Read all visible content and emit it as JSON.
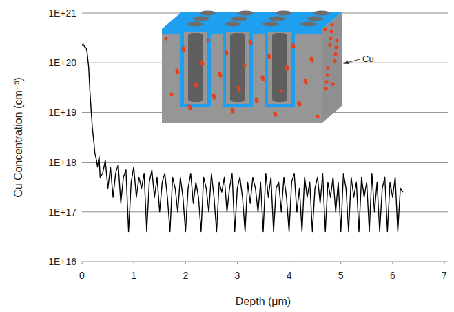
{
  "chart_data": {
    "type": "line",
    "x_label": "Depth (μm)",
    "y_label": "Cu Concentration (cm⁻³)",
    "annotation": "Cu",
    "log": "y",
    "grid": true,
    "color": "#000000",
    "xlim": [
      0,
      7
    ],
    "xticks": [
      0,
      1,
      2,
      3,
      4,
      5,
      6,
      7
    ],
    "ylim": [
      1e+16,
      1e+21
    ],
    "yticks": [
      {
        "value": 1e+16,
        "label": "1E+16"
      },
      {
        "value": 1e+17,
        "label": "1E+17"
      },
      {
        "value": 1e+18,
        "label": "1E+18"
      },
      {
        "value": 1e+19,
        "label": "1E+19"
      },
      {
        "value": 1e+20,
        "label": "1E+20"
      },
      {
        "value": 1e+21,
        "label": "1E+21"
      }
    ],
    "x": [
      0,
      0.02,
      0.05,
      0.08,
      0.1,
      0.13,
      0.15,
      0.18,
      0.2,
      0.23,
      0.25,
      0.28,
      0.3,
      0.33,
      0.35,
      0.4,
      0.45,
      0.5,
      0.55,
      0.6,
      0.65,
      0.7,
      0.75,
      0.8,
      0.85,
      0.9,
      0.95,
      1.0,
      1.05,
      1.1,
      1.15,
      1.2,
      1.25,
      1.3,
      1.35,
      1.4,
      1.45,
      1.5,
      1.55,
      1.6,
      1.65,
      1.7,
      1.75,
      1.8,
      1.85,
      1.9,
      1.95,
      2.0,
      2.05,
      2.1,
      2.15,
      2.2,
      2.25,
      2.3,
      2.35,
      2.4,
      2.45,
      2.5,
      2.55,
      2.6,
      2.65,
      2.7,
      2.75,
      2.8,
      2.85,
      2.9,
      2.95,
      3.0,
      3.05,
      3.1,
      3.15,
      3.2,
      3.25,
      3.3,
      3.35,
      3.4,
      3.45,
      3.5,
      3.55,
      3.6,
      3.65,
      3.7,
      3.75,
      3.8,
      3.85,
      3.9,
      3.95,
      4.0,
      4.05,
      4.1,
      4.15,
      4.2,
      4.25,
      4.3,
      4.35,
      4.4,
      4.45,
      4.5,
      4.55,
      4.6,
      4.65,
      4.7,
      4.75,
      4.8,
      4.85,
      4.9,
      4.95,
      5.0,
      5.05,
      5.1,
      5.15,
      5.2,
      5.25,
      5.3,
      5.35,
      5.4,
      5.45,
      5.5,
      5.55,
      5.6,
      5.65,
      5.7,
      5.75,
      5.8,
      5.85,
      5.9,
      5.95,
      6.0,
      6.05,
      6.1,
      6.15,
      6.2
    ],
    "values": [
      2.2e+20,
      2.4e+20,
      2.1e+20,
      2e+20,
      1.6e+20,
      8e+19,
      3e+19,
      1e+19,
      5e+18,
      2.5e+18,
      1.5e+18,
      1.1e+18,
      8e+17,
      1.3e+18,
      5e+17,
      6e+17,
      1.1e+18,
      3e+17,
      8e+17,
      2e+17,
      6e+17,
      9e+17,
      1.5e+17,
      5e+17,
      7e+17,
      4e+16,
      4e+17,
      8e+17,
      2e+17,
      5e+17,
      3e+17,
      6e+17,
      4e+16,
      4e+17,
      7e+17,
      2e+17,
      5e+17,
      1e+17,
      4e+17,
      6e+17,
      2e+17,
      4e+16,
      5e+17,
      3e+17,
      1e+17,
      5e+17,
      2e+17,
      4e+16,
      3e+17,
      6e+17,
      1.5e+17,
      4e+17,
      2e+17,
      4e+16,
      5e+17,
      3e+17,
      1e+17,
      6e+17,
      2e+17,
      4e+16,
      4e+17,
      2.5e+17,
      5e+17,
      1e+17,
      3e+17,
      6e+17,
      4e+16,
      3e+17,
      5e+17,
      2e+17,
      4e+16,
      4e+17,
      1.5e+17,
      5e+17,
      3e+17,
      1e+17,
      4e+17,
      4e+16,
      6e+17,
      2e+17,
      5e+17,
      4e+16,
      3e+17,
      4e+17,
      1e+17,
      5e+17,
      2e+17,
      4e+16,
      4e+17,
      6e+17,
      1e+17,
      3e+17,
      4e+16,
      5e+17,
      2e+17,
      4e+17,
      4e+16,
      3e+17,
      5e+17,
      1.5e+17,
      6e+17,
      4e+16,
      4e+17,
      2e+17,
      5e+17,
      1e+17,
      4e+17,
      4e+16,
      6e+17,
      3e+17,
      4e+16,
      5e+17,
      2e+17,
      4e+17,
      4e+16,
      5e+17,
      2e+17,
      4e+17,
      4e+16,
      6e+17,
      1e+17,
      4e+17,
      4e+16,
      3e+17,
      5e+17,
      4e+16,
      4e+17,
      2e+17,
      5e+17,
      4e+16,
      3e+17,
      2.5e+17
    ]
  }
}
